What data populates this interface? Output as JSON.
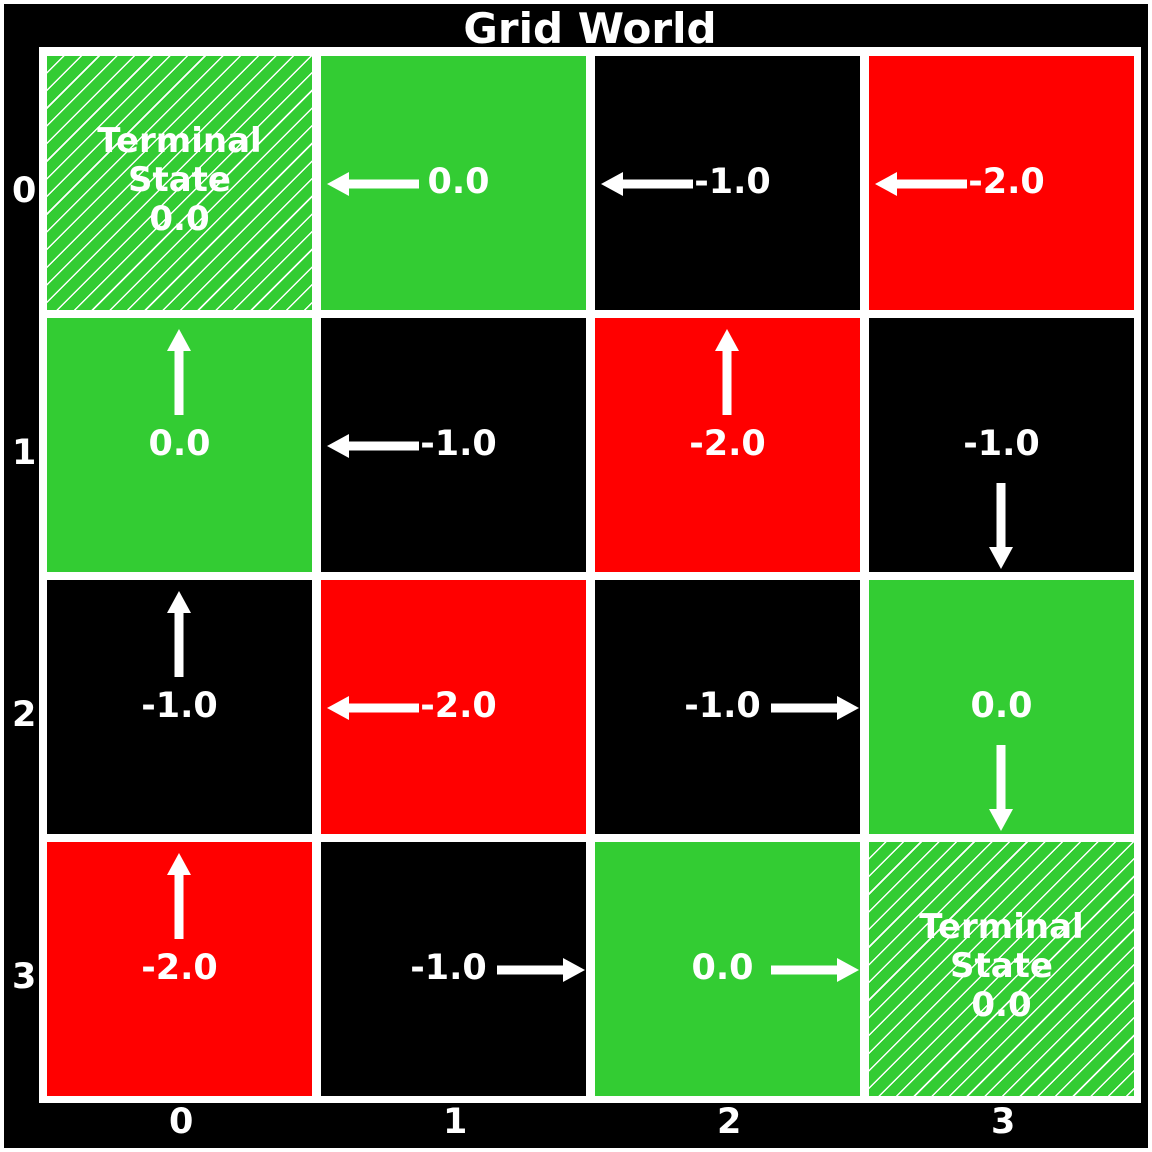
{
  "title": "Grid World",
  "colors": {
    "green": "#33cc33",
    "red": "#ff0000",
    "black": "#000000",
    "line": "#ffffff"
  },
  "row_labels": [
    "0",
    "1",
    "2",
    "3"
  ],
  "col_labels": [
    "0",
    "1",
    "2",
    "3"
  ],
  "cells": [
    [
      {
        "value": "Terminal\nState\n0.0",
        "color": "green",
        "terminal": true,
        "arrow": ""
      },
      {
        "value": "0.0",
        "color": "green",
        "terminal": false,
        "arrow": "left"
      },
      {
        "value": "-1.0",
        "color": "black",
        "terminal": false,
        "arrow": "left"
      },
      {
        "value": "-2.0",
        "color": "red",
        "terminal": false,
        "arrow": "left"
      }
    ],
    [
      {
        "value": "0.0",
        "color": "green",
        "terminal": false,
        "arrow": "up"
      },
      {
        "value": "-1.0",
        "color": "black",
        "terminal": false,
        "arrow": "left"
      },
      {
        "value": "-2.0",
        "color": "red",
        "terminal": false,
        "arrow": "up"
      },
      {
        "value": "-1.0",
        "color": "black",
        "terminal": false,
        "arrow": "down"
      }
    ],
    [
      {
        "value": "-1.0",
        "color": "black",
        "terminal": false,
        "arrow": "up"
      },
      {
        "value": "-2.0",
        "color": "red",
        "terminal": false,
        "arrow": "left"
      },
      {
        "value": "-1.0",
        "color": "black",
        "terminal": false,
        "arrow": "right"
      },
      {
        "value": "0.0",
        "color": "green",
        "terminal": false,
        "arrow": "down"
      }
    ],
    [
      {
        "value": "-2.0",
        "color": "red",
        "terminal": false,
        "arrow": "up"
      },
      {
        "value": "-1.0",
        "color": "black",
        "terminal": false,
        "arrow": "right"
      },
      {
        "value": "0.0",
        "color": "green",
        "terminal": false,
        "arrow": "right"
      },
      {
        "value": "Terminal\nState\n0.0",
        "color": "green",
        "terminal": true,
        "arrow": ""
      }
    ]
  ]
}
